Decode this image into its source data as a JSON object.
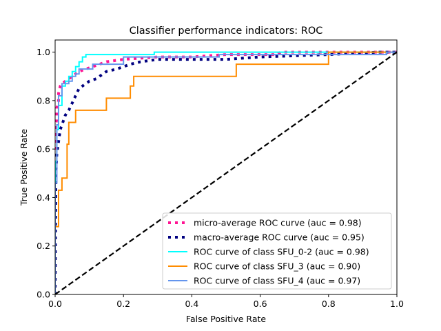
{
  "chart_data": {
    "type": "line",
    "title": "Classifier performance indicators: ROC",
    "xlabel": "False Positive Rate",
    "ylabel": "True Positive Rate",
    "xlim": [
      0.0,
      1.0
    ],
    "ylim": [
      0.0,
      1.05
    ],
    "xticks": [
      "0.0",
      "0.2",
      "0.4",
      "0.6",
      "0.8",
      "1.0"
    ],
    "yticks": [
      "0.0",
      "0.2",
      "0.4",
      "0.6",
      "0.8",
      "1.0"
    ],
    "grid": false,
    "legend_position": "lower-right",
    "series": [
      {
        "name": "micro-average ROC curve (auc = 0.98)",
        "color": "#ff1493",
        "style": "dotted",
        "x": [
          0.0,
          0.0,
          0.005,
          0.005,
          0.01,
          0.01,
          0.015,
          0.02,
          0.03,
          0.04,
          0.05,
          0.07,
          0.09,
          0.11,
          0.13,
          0.15,
          0.2,
          0.3,
          0.4,
          0.5,
          0.65,
          0.66,
          0.8,
          0.9,
          1.0
        ],
        "y": [
          0.0,
          0.7,
          0.72,
          0.77,
          0.8,
          0.83,
          0.86,
          0.87,
          0.88,
          0.89,
          0.9,
          0.92,
          0.93,
          0.94,
          0.95,
          0.96,
          0.97,
          0.98,
          0.98,
          0.99,
          0.99,
          1.0,
          1.0,
          1.0,
          1.0
        ]
      },
      {
        "name": "macro-average ROC curve (auc = 0.95)",
        "color": "#000080",
        "style": "dotted",
        "x": [
          0.0,
          0.002,
          0.005,
          0.01,
          0.015,
          0.02,
          0.03,
          0.04,
          0.05,
          0.06,
          0.07,
          0.08,
          0.1,
          0.12,
          0.15,
          0.18,
          0.22,
          0.25,
          0.3,
          0.4,
          0.5,
          0.6,
          0.8,
          0.95,
          1.0
        ],
        "y": [
          0.0,
          0.48,
          0.58,
          0.63,
          0.68,
          0.7,
          0.74,
          0.76,
          0.79,
          0.82,
          0.85,
          0.86,
          0.88,
          0.89,
          0.92,
          0.93,
          0.95,
          0.96,
          0.97,
          0.97,
          0.97,
          0.98,
          0.99,
          1.0,
          1.0
        ]
      },
      {
        "name": "ROC curve of class SFU_0-2 (auc = 0.98)",
        "color": "#00ffff",
        "style": "solid",
        "x": [
          0.0,
          0.0,
          0.005,
          0.005,
          0.01,
          0.01,
          0.02,
          0.02,
          0.03,
          0.03,
          0.04,
          0.04,
          0.05,
          0.05,
          0.06,
          0.06,
          0.07,
          0.07,
          0.08,
          0.08,
          0.09,
          0.09,
          0.29,
          0.29,
          1.0
        ],
        "y": [
          0.0,
          0.55,
          0.55,
          0.68,
          0.68,
          0.78,
          0.78,
          0.86,
          0.86,
          0.88,
          0.88,
          0.9,
          0.9,
          0.92,
          0.92,
          0.94,
          0.94,
          0.96,
          0.96,
          0.98,
          0.98,
          0.99,
          0.99,
          1.0,
          1.0
        ]
      },
      {
        "name": "ROC curve of class SFU_3 (auc = 0.90)",
        "color": "#ff8c00",
        "style": "solid",
        "x": [
          0.0,
          0.0,
          0.01,
          0.01,
          0.02,
          0.02,
          0.035,
          0.035,
          0.04,
          0.04,
          0.06,
          0.06,
          0.09,
          0.09,
          0.15,
          0.15,
          0.22,
          0.22,
          0.23,
          0.23,
          0.53,
          0.53,
          0.8,
          0.8,
          1.0
        ],
        "y": [
          0.0,
          0.28,
          0.28,
          0.43,
          0.43,
          0.48,
          0.48,
          0.62,
          0.62,
          0.71,
          0.71,
          0.76,
          0.76,
          0.76,
          0.76,
          0.81,
          0.81,
          0.86,
          0.86,
          0.9,
          0.9,
          0.95,
          0.95,
          1.0,
          1.0
        ]
      },
      {
        "name": "ROC curve of class SFU_4 (auc = 0.97)",
        "color": "#6495ed",
        "style": "solid",
        "x": [
          0.0,
          0.0,
          0.005,
          0.005,
          0.01,
          0.01,
          0.02,
          0.02,
          0.04,
          0.04,
          0.05,
          0.05,
          0.06,
          0.06,
          0.07,
          0.07,
          0.11,
          0.11,
          0.2,
          0.2,
          0.48,
          0.48,
          0.97,
          0.97,
          1.0
        ],
        "y": [
          0.0,
          0.46,
          0.46,
          0.7,
          0.7,
          0.82,
          0.82,
          0.87,
          0.87,
          0.88,
          0.88,
          0.9,
          0.9,
          0.91,
          0.91,
          0.93,
          0.93,
          0.95,
          0.95,
          0.98,
          0.98,
          0.99,
          0.99,
          1.0,
          1.0
        ]
      },
      {
        "name": "",
        "color": "#000000",
        "style": "dashed",
        "legend": false,
        "x": [
          0.0,
          1.0
        ],
        "y": [
          0.0,
          1.0
        ]
      }
    ]
  }
}
